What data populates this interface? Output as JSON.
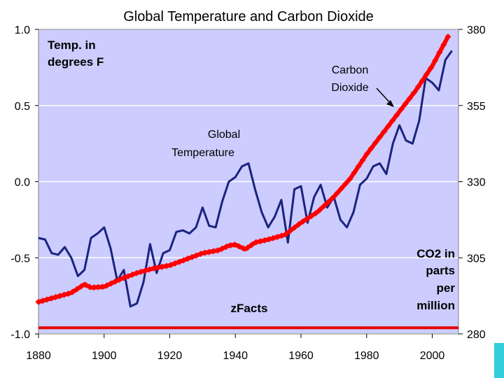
{
  "chart_data": {
    "type": "line",
    "title": "Global Temperature and Carbon Dioxide",
    "xlabel": "",
    "x_ticks": [
      "1880",
      "1900",
      "1920",
      "1940",
      "1960",
      "1980",
      "2000"
    ],
    "xlim": [
      1880,
      2008
    ],
    "y_left": {
      "ticks": [
        "1.0",
        "0.5",
        "0.0",
        "-0.5",
        "-1.0"
      ],
      "ylim": [
        -1.0,
        1.0
      ]
    },
    "y_right": {
      "ticks": [
        "380",
        "355",
        "330",
        "305",
        "280"
      ],
      "ylim": [
        280,
        380
      ]
    },
    "grid": true,
    "series": [
      {
        "name": "Global Temperature",
        "axis": "left",
        "color": "#1a237e",
        "x": [
          1880,
          1882,
          1884,
          1886,
          1888,
          1890,
          1892,
          1894,
          1896,
          1898,
          1900,
          1902,
          1904,
          1906,
          1908,
          1910,
          1912,
          1914,
          1916,
          1918,
          1920,
          1922,
          1924,
          1926,
          1928,
          1930,
          1932,
          1934,
          1936,
          1938,
          1940,
          1942,
          1944,
          1946,
          1948,
          1950,
          1952,
          1954,
          1956,
          1958,
          1960,
          1962,
          1964,
          1966,
          1968,
          1970,
          1972,
          1974,
          1976,
          1978,
          1980,
          1982,
          1984,
          1986,
          1988,
          1990,
          1992,
          1994,
          1996,
          1998,
          2000,
          2002,
          2004,
          2006
        ],
        "values": [
          -0.37,
          -0.38,
          -0.47,
          -0.48,
          -0.43,
          -0.5,
          -0.62,
          -0.58,
          -0.37,
          -0.34,
          -0.3,
          -0.44,
          -0.65,
          -0.58,
          -0.82,
          -0.8,
          -0.66,
          -0.41,
          -0.6,
          -0.47,
          -0.45,
          -0.33,
          -0.32,
          -0.34,
          -0.3,
          -0.17,
          -0.29,
          -0.3,
          -0.13,
          0.0,
          0.03,
          0.1,
          0.12,
          -0.05,
          -0.2,
          -0.3,
          -0.23,
          -0.12,
          -0.4,
          -0.05,
          -0.03,
          -0.27,
          -0.1,
          -0.02,
          -0.17,
          -0.1,
          -0.25,
          -0.3,
          -0.2,
          -0.02,
          0.02,
          0.1,
          0.12,
          0.05,
          0.25,
          0.37,
          0.27,
          0.25,
          0.4,
          0.68,
          0.65,
          0.6,
          0.8,
          0.86
        ]
      },
      {
        "name": "Carbon Dioxide",
        "axis": "right",
        "color": "#ff0000",
        "x": [
          1880,
          1885,
          1890,
          1894,
          1896,
          1900,
          1905,
          1910,
          1915,
          1920,
          1925,
          1930,
          1935,
          1938,
          1940,
          1943,
          1946,
          1950,
          1955,
          1960,
          1965,
          1970,
          1975,
          1980,
          1985,
          1990,
          1995,
          2000,
          2005
        ],
        "values": [
          290.5,
          292,
          293.5,
          296.3,
          295.2,
          295.5,
          298,
          300,
          301.5,
          302.5,
          304.5,
          306.5,
          307.5,
          309,
          309.3,
          307.8,
          310,
          311,
          312.5,
          316.5,
          320,
          325,
          331,
          339,
          346,
          353,
          360,
          368,
          378
        ]
      },
      {
        "name": "Baseline",
        "axis": "left",
        "color": "#e60000",
        "x": [
          1880,
          2008
        ],
        "values": [
          -0.96,
          -0.96
        ]
      }
    ],
    "annotations": {
      "temp_units": [
        "Temp. in",
        "degrees F"
      ],
      "carbon_label": [
        "Carbon",
        "Dioxide"
      ],
      "global_temp_label": [
        "Global",
        "Temperature"
      ],
      "co2_units": [
        "CO2 in",
        "parts",
        "per",
        "million"
      ],
      "source": "zFacts"
    }
  }
}
